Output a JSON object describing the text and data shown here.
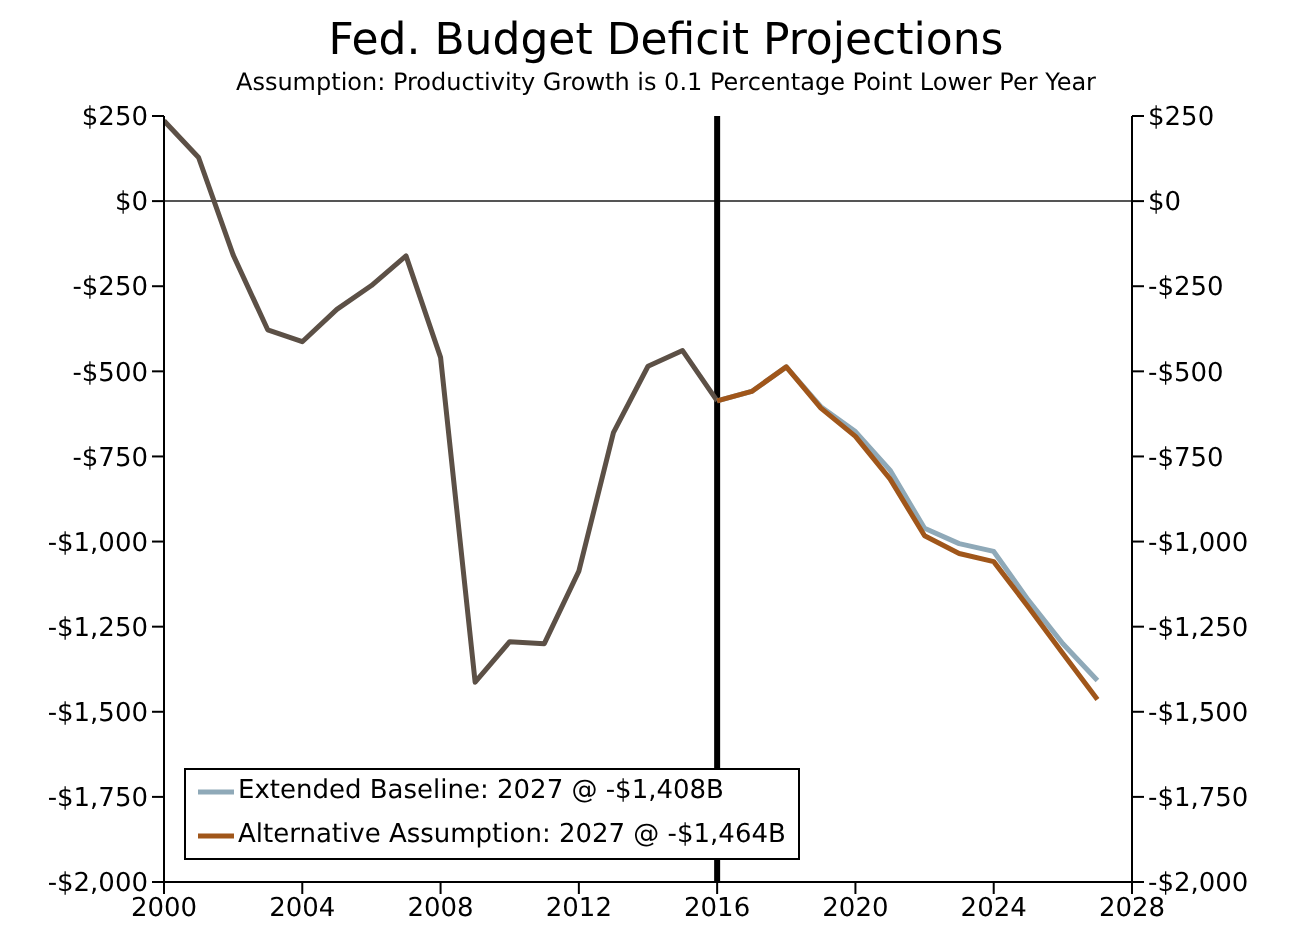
{
  "chart_data": {
    "type": "line",
    "title": "Fed. Budget Deficit Projections",
    "subtitle": "Assumption: Productivity Growth is 0.1 Percentage Point Lower Per Year",
    "series": [
      {
        "color": "#5c5046",
        "x": [
          2000,
          2001,
          2002,
          2003,
          2004,
          2005,
          2006,
          2007,
          2008,
          2009,
          2010,
          2011,
          2012,
          2013,
          2014,
          2015,
          2016
        ],
        "values": [
          236,
          128,
          -158,
          -378,
          -413,
          -318,
          -248,
          -161,
          -459,
          -1413,
          -1294,
          -1300,
          -1087,
          -680,
          -485,
          -439,
          -587
        ]
      },
      {
        "name": "Extended Baseline: 2027 @ -$1,408B",
        "color": "#8fa9b8",
        "x": [
          2016,
          2017,
          2018,
          2019,
          2020,
          2021,
          2022,
          2023,
          2024,
          2025,
          2026,
          2027
        ],
        "values": [
          -587,
          -559,
          -487,
          -604,
          -677,
          -790,
          -961,
          -1006,
          -1029,
          -1172,
          -1300,
          -1408
        ]
      },
      {
        "name": "Alternative Assumption: 2027 @ -$1,464B",
        "color": "#a0561a",
        "x": [
          2016,
          2017,
          2018,
          2019,
          2020,
          2021,
          2022,
          2023,
          2024,
          2025,
          2026,
          2027
        ],
        "values": [
          -587,
          -559,
          -487,
          -608,
          -691,
          -816,
          -983,
          -1035,
          -1059,
          -1192,
          -1329,
          -1464
        ]
      }
    ],
    "xlim": [
      2000,
      2028
    ],
    "xticks": [
      2000,
      2004,
      2008,
      2012,
      2016,
      2020,
      2024,
      2028
    ],
    "ylim": [
      -2000,
      250
    ],
    "yticks": [
      {
        "value": 250,
        "label": "$250"
      },
      {
        "value": 0,
        "label": "$0"
      },
      {
        "value": -250,
        "label": "-$250"
      },
      {
        "value": -500,
        "label": "-$500"
      },
      {
        "value": -750,
        "label": "-$750"
      },
      {
        "value": -1000,
        "label": "-$1,000"
      },
      {
        "value": -1250,
        "label": "-$1,250"
      },
      {
        "value": -1500,
        "label": "-$1,500"
      },
      {
        "value": -1750,
        "label": "-$1,750"
      },
      {
        "value": -2000,
        "label": "-$2,000"
      }
    ],
    "y2lim": [
      -2000,
      250
    ],
    "y2ticks": [
      {
        "value": 250,
        "label": "$250"
      },
      {
        "value": 0,
        "label": "$0"
      },
      {
        "value": -250,
        "label": "-$250"
      },
      {
        "value": -500,
        "label": "-$500"
      },
      {
        "value": -750,
        "label": "-$750"
      },
      {
        "value": -1000,
        "label": "-$1,000"
      },
      {
        "value": -1250,
        "label": "-$1,250"
      },
      {
        "value": -1500,
        "label": "-$1,500"
      },
      {
        "value": -1750,
        "label": "-$1,750"
      },
      {
        "value": -2000,
        "label": "-$2,000"
      }
    ],
    "ref_lines": [
      {
        "axis": "y",
        "value": 0,
        "color": "#555555"
      },
      {
        "axis": "x",
        "value": 2016,
        "color": "#000000"
      }
    ],
    "legend": "bottom left",
    "grid": false,
    "marker": "none",
    "line_style": "solid"
  }
}
